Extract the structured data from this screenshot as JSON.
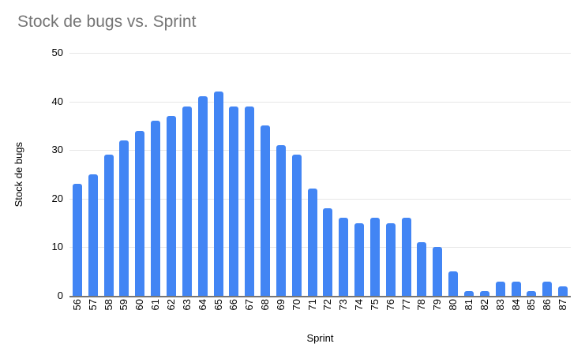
{
  "chart_data": {
    "type": "bar",
    "title": "Stock de bugs vs. Sprint",
    "xlabel": "Sprint",
    "ylabel": "Stock de bugs",
    "categories": [
      "56",
      "57",
      "58",
      "59",
      "60",
      "61",
      "62",
      "63",
      "64",
      "65",
      "66",
      "67",
      "68",
      "69",
      "70",
      "71",
      "72",
      "73",
      "74",
      "75",
      "76",
      "77",
      "78",
      "79",
      "80",
      "81",
      "82",
      "83",
      "84",
      "85",
      "86",
      "87"
    ],
    "values": [
      23,
      25,
      29,
      32,
      34,
      36,
      37,
      39,
      41,
      42,
      39,
      39,
      35,
      31,
      29,
      22,
      18,
      16,
      15,
      16,
      15,
      16,
      11,
      10,
      5,
      1,
      1,
      3,
      3,
      1,
      3,
      2
    ],
    "ylim": [
      0,
      50
    ],
    "yticks": [
      0,
      10,
      20,
      30,
      40,
      50
    ],
    "grid": true,
    "legend": "none",
    "colors": {
      "bar": "#4285f4",
      "title": "#757575",
      "gridline": "#e6e6e6",
      "axis_line": "#757575",
      "tick_label": "#000000"
    }
  }
}
